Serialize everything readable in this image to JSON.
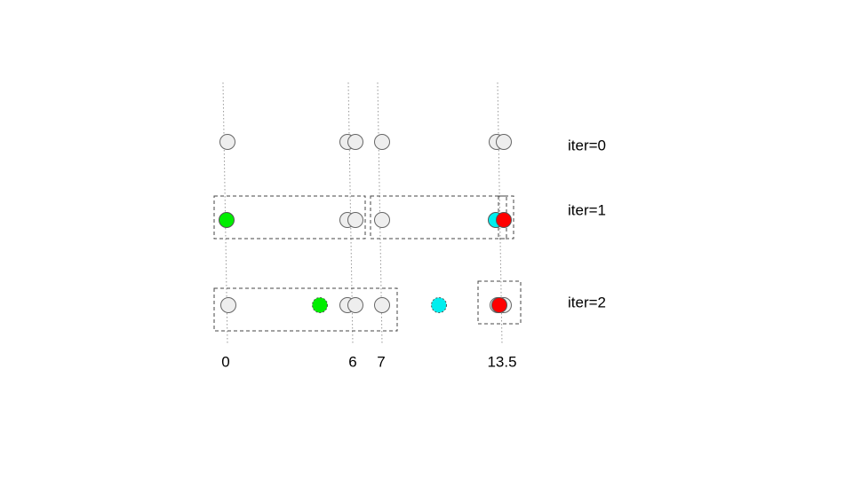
{
  "axis_labels": [
    "0",
    "6",
    "7",
    "13.5"
  ],
  "rows": [
    "iter=0",
    "iter=1",
    "iter=2"
  ]
}
